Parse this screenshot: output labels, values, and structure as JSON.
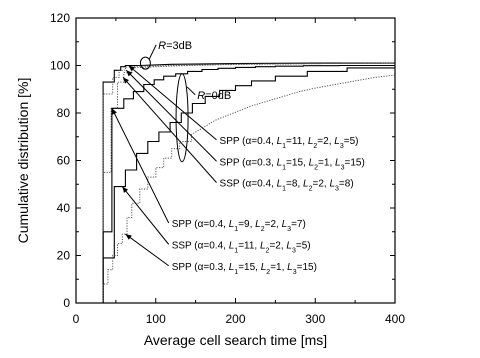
{
  "chart_data": {
    "type": "line",
    "xlabel": "Average cell search time [ms]",
    "ylabel": "Cumulative distribution [%]",
    "xlim": [
      0,
      400
    ],
    "ylim": [
      0,
      120
    ],
    "xticks": [
      0,
      100,
      200,
      300,
      400
    ],
    "yticks": [
      0,
      20,
      40,
      60,
      80,
      100,
      120
    ],
    "grid": false,
    "annotations": [
      {
        "text": "R=3dB",
        "label": {
          "x": 103,
          "y": 107
        },
        "ellipse": {
          "x": 87,
          "y": 101
        }
      },
      {
        "text": "R=0dB",
        "label": {
          "x": 152,
          "y": 86
        },
        "ellipse": {
          "x": 133,
          "y": 78
        }
      }
    ],
    "series_labels": [
      {
        "series": "s1",
        "parts": [
          "SPP (α=0.4, ",
          "L",
          "1",
          "=11, ",
          "L",
          "2",
          "=2, ",
          "L",
          "3",
          "=5)"
        ],
        "text_at": {
          "x": 180,
          "y": 67
        },
        "arrow_to": {
          "x": 66,
          "y": 100
        }
      },
      {
        "series": "s2",
        "parts": [
          "SPP (α=0.3, ",
          "L",
          "1",
          "=15, ",
          "L",
          "2",
          "=1, ",
          "L",
          "3",
          "=15)"
        ],
        "text_at": {
          "x": 180,
          "y": 58
        },
        "arrow_to": {
          "x": 63,
          "y": 98
        }
      },
      {
        "series": "s3",
        "parts": [
          "SSP (α=0.4, ",
          "L",
          "1",
          "=8, ",
          "L",
          "2",
          "=2, ",
          "L",
          "3",
          "=8)"
        ],
        "text_at": {
          "x": 180,
          "y": 49
        },
        "arrow_to": {
          "x": 59,
          "y": 95
        }
      },
      {
        "series": "s4",
        "parts": [
          "SPP (α=0.4, ",
          "L",
          "1",
          "=9, ",
          "L",
          "2",
          "=2, ",
          "L",
          "3",
          "=7)"
        ],
        "text_at": {
          "x": 120,
          "y": 32
        },
        "arrow_to": {
          "x": 45,
          "y": 82
        }
      },
      {
        "series": "s5",
        "parts": [
          "SSP (α=0.4, ",
          "L",
          "1",
          "=11, ",
          "L",
          "2",
          "=2, ",
          "L",
          "3",
          "=5)"
        ],
        "text_at": {
          "x": 120,
          "y": 23
        },
        "arrow_to": {
          "x": 58,
          "y": 49
        }
      },
      {
        "series": "s6",
        "parts": [
          "SPP (α=0.3, ",
          "L",
          "1",
          "=15, ",
          "L",
          "2",
          "=1, ",
          "L",
          "3",
          "=15)"
        ],
        "text_at": {
          "x": 120,
          "y": 14
        },
        "arrow_to": {
          "x": 62,
          "y": 29
        }
      }
    ],
    "series": [
      {
        "id": "s1",
        "style": "solid",
        "x": [
          0,
          34,
          34,
          48,
          48,
          56,
          56,
          62,
          62,
          80,
          120,
          200,
          300,
          400
        ],
        "y": [
          0,
          0,
          93,
          93,
          98,
          98,
          99.5,
          99.5,
          100,
          100,
          100.5,
          100.8,
          101,
          101
        ]
      },
      {
        "id": "s2",
        "style": "dotted",
        "x": [
          0,
          34,
          34,
          46,
          46,
          54,
          54,
          62,
          62,
          80,
          120,
          200,
          300,
          400
        ],
        "y": [
          0,
          0,
          88,
          88,
          95,
          95,
          98,
          98,
          99.3,
          99.7,
          100,
          100.5,
          100.8,
          101
        ]
      },
      {
        "id": "s3",
        "style": "dotted",
        "x": [
          0,
          34,
          34,
          44,
          44,
          52,
          52,
          60,
          60,
          70,
          70,
          100,
          140,
          200,
          300,
          400
        ],
        "y": [
          0,
          0,
          55,
          55,
          82,
          82,
          93,
          93,
          97,
          97,
          99,
          99.5,
          100,
          100.5,
          100.8,
          101
        ]
      },
      {
        "id": "s4",
        "style": "solid",
        "x": [
          0,
          34,
          34,
          45,
          45,
          60,
          60,
          72,
          72,
          85,
          85,
          98,
          98,
          110,
          110,
          125,
          125,
          140,
          140,
          158,
          158,
          178,
          178,
          200,
          200,
          225,
          225,
          250,
          250,
          285,
          285,
          330,
          330,
          400
        ],
        "y": [
          0,
          0,
          30,
          30,
          82,
          82,
          86,
          86,
          89,
          89,
          92,
          92,
          94,
          94,
          95.5,
          95.5,
          96.5,
          96.5,
          97.5,
          97.5,
          98.3,
          98.3,
          98.8,
          98.8,
          99.2,
          99.2,
          99.5,
          99.5,
          99.7,
          99.7,
          99.9,
          99.9,
          100,
          100
        ]
      },
      {
        "id": "s5",
        "style": "solid",
        "x": [
          0,
          34,
          34,
          48,
          48,
          62,
          62,
          76,
          76,
          90,
          90,
          104,
          104,
          118,
          118,
          132,
          132,
          146,
          146,
          162,
          162,
          180,
          180,
          200,
          200,
          220,
          220,
          250,
          250,
          290,
          290,
          340,
          340,
          400
        ],
        "y": [
          0,
          0,
          19,
          19,
          49,
          49,
          56,
          56,
          63,
          63,
          68,
          68,
          72,
          72,
          76,
          76,
          80,
          80,
          84,
          84,
          87,
          87,
          89.5,
          89.5,
          91.5,
          91.5,
          93.5,
          93.5,
          95.5,
          95.5,
          97.5,
          97.5,
          99,
          99
        ]
      },
      {
        "id": "s6",
        "style": "dotted",
        "x": [
          0,
          34,
          34,
          40,
          40,
          46,
          46,
          52,
          52,
          58,
          58,
          64,
          64,
          70,
          70,
          80,
          80,
          90,
          90,
          100,
          100,
          110,
          110,
          120,
          120,
          130,
          130,
          145,
          145,
          160,
          175,
          190,
          205,
          220,
          240,
          260,
          280,
          300,
          325,
          350,
          375,
          400
        ],
        "y": [
          0,
          0,
          8,
          8,
          14,
          14,
          20,
          20,
          25,
          25,
          29,
          29,
          36,
          36,
          42,
          42,
          48,
          48,
          53,
          53,
          57,
          57,
          61,
          61,
          65,
          65,
          68,
          68,
          71,
          74,
          77,
          79,
          81,
          83,
          85,
          87,
          89,
          90.5,
          92,
          93.5,
          95,
          96
        ]
      }
    ]
  }
}
